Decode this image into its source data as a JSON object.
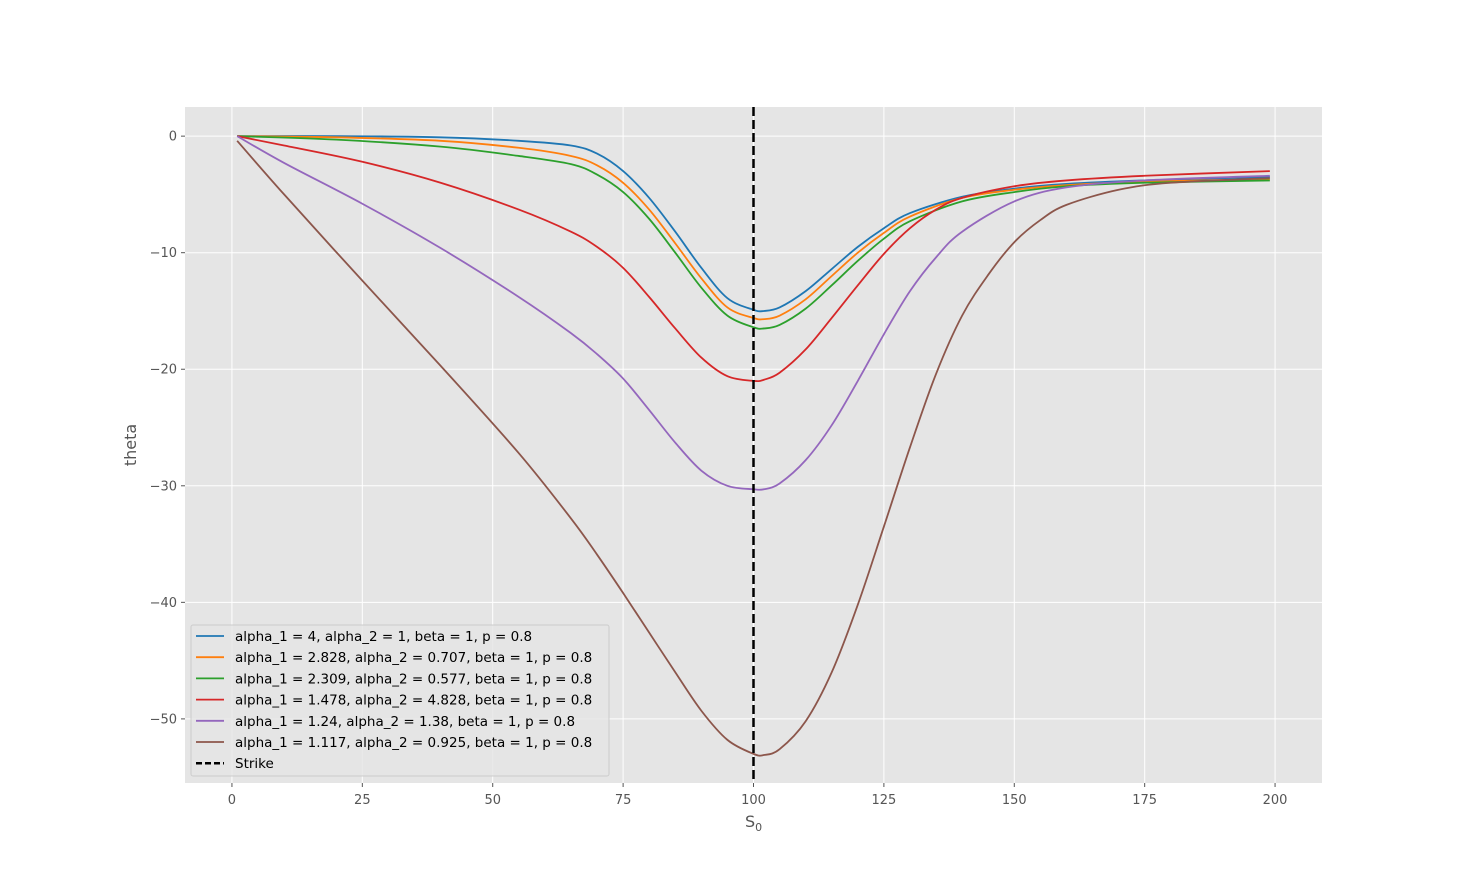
{
  "chart_data": {
    "type": "line",
    "title": "",
    "xlabel": "S",
    "xlabel_sub": "0",
    "ylabel": "theta",
    "xlim": [
      -9,
      209
    ],
    "ylim": [
      -55.5,
      2.5
    ],
    "xticks": [
      0,
      25,
      50,
      75,
      100,
      125,
      150,
      175,
      200
    ],
    "yticks": [
      0,
      -10,
      -20,
      -30,
      -40,
      -50
    ],
    "xtick_labels": [
      "0",
      "25",
      "50",
      "75",
      "100",
      "125",
      "150",
      "175",
      "200"
    ],
    "ytick_labels": [
      "0",
      "−10",
      "−20",
      "−30",
      "−40",
      "−50"
    ],
    "grid": true,
    "legend_position": "lower-left",
    "series": [
      {
        "name": "alpha_1 = 4, alpha_2 = 1, beta = 1, p = 0.8",
        "color": "#1f77b4",
        "x": [
          1,
          20,
          40,
          55,
          65,
          70,
          75,
          80,
          85,
          90,
          95,
          100,
          102,
          105,
          110,
          115,
          120,
          125,
          130,
          140,
          150,
          160,
          175,
          199
        ],
        "y": [
          0,
          0,
          -0.1,
          -0.4,
          -0.8,
          -1.5,
          -3.0,
          -5.3,
          -8.2,
          -11.3,
          -13.9,
          -14.9,
          -15.0,
          -14.7,
          -13.3,
          -11.4,
          -9.5,
          -7.9,
          -6.6,
          -5.2,
          -4.5,
          -4.1,
          -3.8,
          -3.5
        ]
      },
      {
        "name": "alpha_1 = 2.828, alpha_2 = 0.707, beta = 1, p = 0.8",
        "color": "#ff7f0e",
        "x": [
          1,
          20,
          40,
          55,
          65,
          70,
          75,
          80,
          85,
          90,
          95,
          100,
          102,
          105,
          110,
          115,
          120,
          125,
          130,
          140,
          150,
          160,
          175,
          199
        ],
        "y": [
          0,
          -0.1,
          -0.4,
          -1.0,
          -1.7,
          -2.5,
          -4.0,
          -6.3,
          -9.2,
          -12.2,
          -14.7,
          -15.6,
          -15.7,
          -15.4,
          -14.0,
          -12.0,
          -10.0,
          -8.3,
          -6.9,
          -5.3,
          -4.6,
          -4.2,
          -3.9,
          -3.7
        ]
      },
      {
        "name": "alpha_1 = 2.309, alpha_2 = 0.577, beta = 1, p = 0.8",
        "color": "#2ca02c",
        "x": [
          1,
          20,
          40,
          55,
          65,
          70,
          75,
          80,
          85,
          90,
          95,
          100,
          102,
          105,
          110,
          115,
          120,
          125,
          130,
          140,
          150,
          160,
          175,
          199
        ],
        "y": [
          0,
          -0.3,
          -0.9,
          -1.7,
          -2.4,
          -3.3,
          -4.8,
          -7.1,
          -10.0,
          -13.0,
          -15.4,
          -16.4,
          -16.5,
          -16.2,
          -14.8,
          -12.8,
          -10.7,
          -8.8,
          -7.3,
          -5.6,
          -4.8,
          -4.3,
          -4.0,
          -3.8
        ]
      },
      {
        "name": "alpha_1 = 1.478, alpha_2 = 4.828, beta = 1, p = 0.8",
        "color": "#d62728",
        "x": [
          1,
          10,
          25,
          40,
          55,
          65,
          70,
          75,
          80,
          85,
          90,
          95,
          100,
          102,
          105,
          110,
          115,
          120,
          125,
          130,
          135,
          140,
          150,
          160,
          175,
          199
        ],
        "y": [
          0,
          -0.8,
          -2.2,
          -4.0,
          -6.3,
          -8.2,
          -9.5,
          -11.3,
          -13.8,
          -16.5,
          -19.0,
          -20.6,
          -21.0,
          -20.9,
          -20.3,
          -18.3,
          -15.6,
          -12.8,
          -10.1,
          -7.9,
          -6.3,
          -5.3,
          -4.3,
          -3.8,
          -3.4,
          -3.0
        ]
      },
      {
        "name": "alpha_1 = 1.24, alpha_2 = 1.38, beta = 1, p = 0.8",
        "color": "#9467bd",
        "x": [
          1,
          10,
          25,
          40,
          55,
          65,
          70,
          75,
          80,
          85,
          90,
          95,
          100,
          102,
          105,
          110,
          115,
          120,
          125,
          130,
          135,
          140,
          150,
          160,
          175,
          199
        ],
        "y": [
          0,
          -2.3,
          -5.8,
          -9.6,
          -13.8,
          -16.9,
          -18.7,
          -20.8,
          -23.5,
          -26.3,
          -28.7,
          -30.0,
          -30.3,
          -30.3,
          -29.8,
          -27.8,
          -24.8,
          -21.0,
          -17.0,
          -13.3,
          -10.4,
          -8.2,
          -5.6,
          -4.4,
          -3.8,
          -3.4
        ]
      },
      {
        "name": "alpha_1 = 1.117, alpha_2 = 0.925, beta = 1, p = 0.8",
        "color": "#8c564b",
        "x": [
          1,
          10,
          25,
          40,
          55,
          65,
          70,
          75,
          80,
          85,
          90,
          95,
          100,
          102,
          105,
          110,
          115,
          120,
          125,
          130,
          135,
          140,
          145,
          150,
          155,
          160,
          170,
          180,
          199
        ],
        "y": [
          -0.4,
          -5.0,
          -12.4,
          -19.7,
          -27.2,
          -32.8,
          -35.9,
          -39.2,
          -42.6,
          -46.0,
          -49.3,
          -51.8,
          -53.0,
          -53.1,
          -52.6,
          -50.2,
          -46.0,
          -40.2,
          -33.5,
          -26.7,
          -20.4,
          -15.4,
          -11.9,
          -9.1,
          -7.2,
          -5.9,
          -4.6,
          -4.0,
          -3.6
        ]
      }
    ],
    "vlines": [
      {
        "name": "Strike",
        "x": 100,
        "color": "#000000",
        "style": "dashed"
      }
    ]
  }
}
